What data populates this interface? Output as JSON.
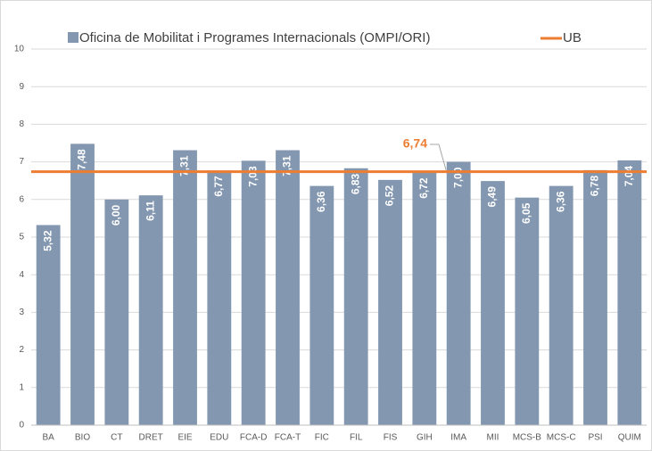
{
  "chart_data": {
    "type": "bar",
    "categories": [
      "BA",
      "BIO",
      "CT",
      "DRET",
      "EIE",
      "EDU",
      "FCA-D",
      "FCA-T",
      "FIC",
      "FIL",
      "FIS",
      "GIH",
      "IMA",
      "MII",
      "MCS-B",
      "MCS-C",
      "PSI",
      "QUIM"
    ],
    "series": [
      {
        "name": "Oficina de Mobilitat i Programes Internacionals (OMPI/ORI)",
        "color": "#8497b0",
        "values": [
          5.32,
          7.48,
          6.0,
          6.11,
          7.31,
          6.77,
          7.03,
          7.31,
          6.36,
          6.83,
          6.52,
          6.72,
          7.0,
          6.49,
          6.05,
          6.36,
          6.78,
          7.04
        ],
        "value_labels": [
          "5,32",
          "7,48",
          "6,00",
          "6,11",
          "7,31",
          "6,77",
          "7,03",
          "7,31",
          "6,36",
          "6,83",
          "6,52",
          "6,72",
          "7,00",
          "6,49",
          "6,05",
          "6,36",
          "6,78",
          "7,04"
        ]
      }
    ],
    "reference_line": {
      "name": "UB",
      "color": "#ed7d31",
      "value": 6.74,
      "value_label": "6,74"
    },
    "ylim": [
      0,
      10
    ],
    "yticks": [
      0,
      1,
      2,
      3,
      4,
      5,
      6,
      7,
      8,
      9,
      10
    ],
    "grid": true
  }
}
